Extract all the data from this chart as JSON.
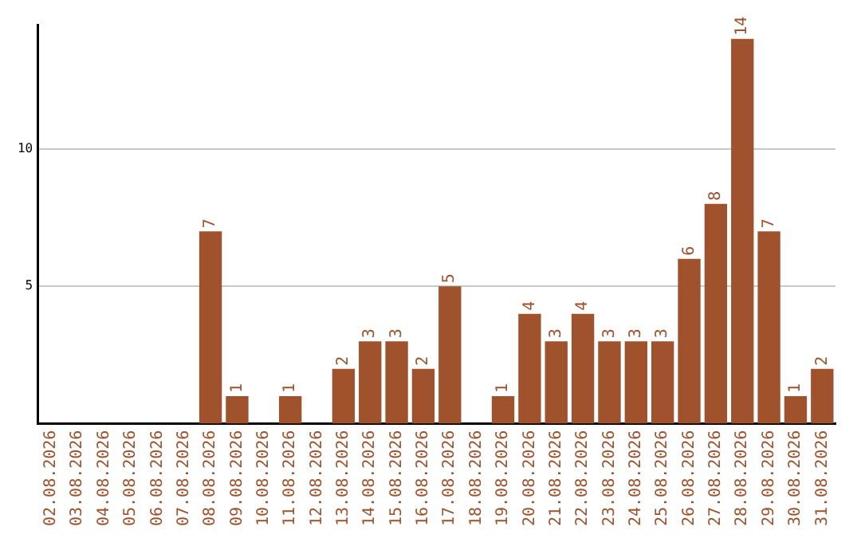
{
  "chart_data": {
    "type": "bar",
    "categories": [
      "02.08.2026",
      "03.08.2026",
      "04.08.2026",
      "05.08.2026",
      "06.08.2026",
      "07.08.2026",
      "08.08.2026",
      "09.08.2026",
      "10.08.2026",
      "11.08.2026",
      "12.08.2026",
      "13.08.2026",
      "14.08.2026",
      "15.08.2026",
      "16.08.2026",
      "17.08.2026",
      "18.08.2026",
      "19.08.2026",
      "20.08.2026",
      "21.08.2026",
      "22.08.2026",
      "23.08.2026",
      "24.08.2026",
      "25.08.2026",
      "26.08.2026",
      "27.08.2026",
      "28.08.2026",
      "29.08.2026",
      "30.08.2026",
      "31.08.2026"
    ],
    "values": [
      0,
      0,
      0,
      0,
      0,
      0,
      7,
      1,
      0,
      1,
      0,
      2,
      3,
      3,
      2,
      5,
      0,
      1,
      4,
      3,
      4,
      3,
      3,
      3,
      6,
      8,
      14,
      7,
      1,
      2
    ],
    "value_labels": [
      null,
      null,
      null,
      null,
      null,
      null,
      "7",
      "1",
      null,
      "1",
      null,
      "2",
      "3",
      "3",
      "2",
      "5",
      null,
      "1",
      "4",
      "3",
      "4",
      "3",
      "3",
      "3",
      "6",
      "8",
      "14",
      "7",
      "1",
      "2"
    ],
    "color": "#a0522d",
    "ylim": [
      0,
      14.5
    ],
    "yticks": [
      5,
      10
    ],
    "grid": "y",
    "legend": false
  }
}
